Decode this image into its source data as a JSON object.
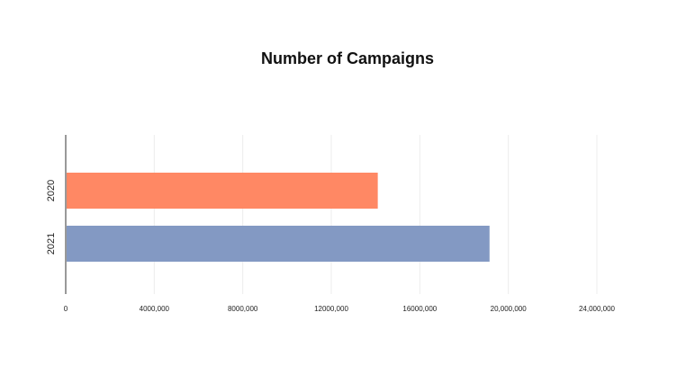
{
  "chart_data": {
    "type": "bar",
    "orientation": "horizontal",
    "title": "Number of Campaigns",
    "xlabel": "",
    "ylabel": "",
    "categories": [
      "2020",
      "2021"
    ],
    "values": [
      14100000,
      19150000
    ],
    "colors": [
      "#FF8864",
      "#8399C3"
    ],
    "xlim": [
      0,
      24000000
    ],
    "x_ticks": [
      0,
      4000000,
      8000000,
      12000000,
      16000000,
      20000000,
      24000000
    ],
    "x_tick_labels": [
      "0",
      "4000,000",
      "8000,000",
      "12000,000",
      "16000,000",
      "20,000,000",
      "24,000,000"
    ],
    "grid": true,
    "legend": "none"
  }
}
